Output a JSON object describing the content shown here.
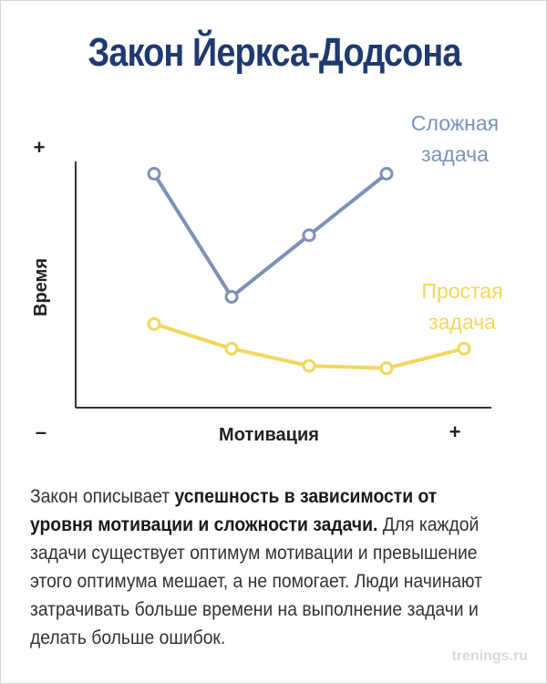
{
  "page_title": "Закон Йеркса-Додсона",
  "chart_data": {
    "type": "line",
    "xlabel": "Мотивация",
    "ylabel": "Время",
    "x_axis_min_label": "–",
    "x_axis_max_label": "+",
    "y_axis_max_label": "+",
    "x": [
      1,
      2,
      3,
      4,
      5
    ],
    "ylim": [
      0,
      10
    ],
    "series": [
      {
        "name": "Сложная задача",
        "name_lines": [
          "Сложная",
          "задача"
        ],
        "color": "#7c92b8",
        "x": [
          1,
          2,
          3,
          4
        ],
        "values": [
          9.5,
          4.5,
          7.0,
          9.5
        ]
      },
      {
        "name": "Простая задача",
        "name_lines": [
          "Простая",
          "задача"
        ],
        "color": "#f2d75c",
        "x": [
          1,
          2,
          3,
          4,
          5
        ],
        "values": [
          3.4,
          2.4,
          1.7,
          1.6,
          2.4
        ]
      }
    ]
  },
  "description": {
    "part1": "Закон описывает ",
    "bold": "успешность в зависимости от уровня мотивации и сложности задачи.",
    "part2": "  Для каждой задачи существует оптимум мотивации и превышение этого оптимума мешает, а не помогает. Люди начинают затрачивать больше времени на выполнение задачи и делать больше ошибок."
  },
  "watermark": "trenings.ru"
}
